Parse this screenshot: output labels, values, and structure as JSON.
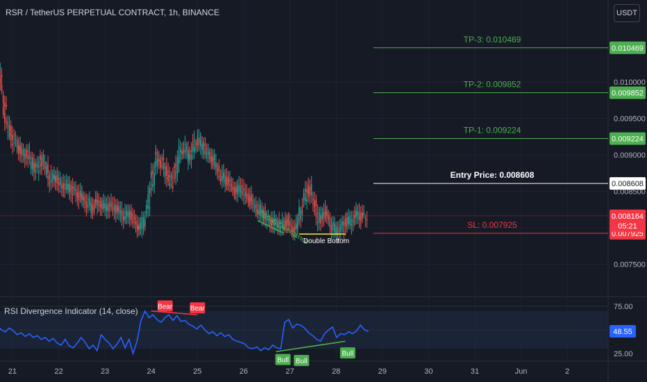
{
  "header": {
    "title": "RSR / TetherUS PERPETUAL CONTRACT, 1h, BINANCE",
    "currency_button": "USDT"
  },
  "indicator": {
    "title": "RSI Divergence Indicator (14, close)",
    "value_label": "48.55"
  },
  "colors": {
    "background": "#161a25",
    "up": "#26a69a",
    "down": "#ef5350",
    "tp_line": "#4caf50",
    "sl_line": "#f23645",
    "rsi_line": "#2962ff",
    "rsi_band": "#1e2a3d",
    "bull": "#4caf50",
    "bear": "#f23645",
    "divergence_text": "#4caf50",
    "double_bottom": "#ffeb3b"
  },
  "chart_data": {
    "type": "candlestick",
    "x_ticks": [
      "21",
      "22",
      "23",
      "24",
      "25",
      "26",
      "27",
      "28",
      "29",
      "30",
      "31",
      "Jun",
      "2"
    ],
    "y_ticks": [
      "0.010000",
      "0.009500",
      "0.009000",
      "0.008500",
      "0.008000",
      "0.007500"
    ],
    "ylim": [
      0.0073,
      0.0107
    ],
    "levels": [
      {
        "name": "TP-3",
        "label": "TP-3: 0.010469",
        "value": 0.010469,
        "axis_label": "0.010469",
        "style": "tp"
      },
      {
        "name": "TP-2",
        "label": "TP-2: 0.009852",
        "value": 0.009852,
        "axis_label": "0.009852",
        "style": "tp"
      },
      {
        "name": "TP-1",
        "label": "TP-1: 0.009224",
        "value": 0.009224,
        "axis_label": "0.009224",
        "style": "tp"
      },
      {
        "name": "Entry",
        "label": "Entry Price: 0.008608",
        "value": 0.008608,
        "axis_label": "0.008608",
        "style": "entry"
      },
      {
        "name": "SL",
        "label": "SL: 0.007925",
        "value": 0.007925,
        "axis_label": "0.007925",
        "style": "sl"
      }
    ],
    "current_price": {
      "value": 0.008164,
      "label": "0.008164",
      "countdown": "05:21"
    },
    "annotations": {
      "bullish_divergence": "Bullish Divergence",
      "double_bottom": "Double Bottom"
    },
    "series_close": [
      [
        20.5,
        0.0097
      ],
      [
        20.6,
        0.0104
      ],
      [
        20.7,
        0.0101
      ],
      [
        20.8,
        0.0096
      ],
      [
        20.9,
        0.0093
      ],
      [
        21.0,
        0.0092
      ],
      [
        21.1,
        0.0091
      ],
      [
        21.2,
        0.009
      ],
      [
        21.3,
        0.00905
      ],
      [
        21.4,
        0.00885
      ],
      [
        21.5,
        0.0088
      ],
      [
        21.6,
        0.00895
      ],
      [
        21.7,
        0.0088
      ],
      [
        21.8,
        0.00865
      ],
      [
        21.9,
        0.0087
      ],
      [
        22.0,
        0.0086
      ],
      [
        22.1,
        0.00858
      ],
      [
        22.2,
        0.00855
      ],
      [
        22.3,
        0.0085
      ],
      [
        22.4,
        0.00845
      ],
      [
        22.5,
        0.0084
      ],
      [
        22.6,
        0.00835
      ],
      [
        22.7,
        0.00825
      ],
      [
        22.8,
        0.00838
      ],
      [
        22.9,
        0.00832
      ],
      [
        23.0,
        0.00828
      ],
      [
        23.1,
        0.0083
      ],
      [
        23.2,
        0.00826
      ],
      [
        23.3,
        0.00822
      ],
      [
        23.4,
        0.00815
      ],
      [
        23.5,
        0.0082
      ],
      [
        23.6,
        0.0081
      ],
      [
        23.7,
        0.008
      ],
      [
        23.8,
        0.00805
      ],
      [
        23.9,
        0.0083
      ],
      [
        24.0,
        0.0087
      ],
      [
        24.1,
        0.009
      ],
      [
        24.2,
        0.0089
      ],
      [
        24.3,
        0.00875
      ],
      [
        24.4,
        0.0086
      ],
      [
        24.5,
        0.0088
      ],
      [
        24.6,
        0.00905
      ],
      [
        24.7,
        0.0091
      ],
      [
        24.8,
        0.00895
      ],
      [
        24.9,
        0.00915
      ],
      [
        25.0,
        0.0092
      ],
      [
        25.1,
        0.0091
      ],
      [
        25.2,
        0.009
      ],
      [
        25.3,
        0.00895
      ],
      [
        25.4,
        0.0088
      ],
      [
        25.5,
        0.0087
      ],
      [
        25.6,
        0.00865
      ],
      [
        25.7,
        0.00858
      ],
      [
        25.8,
        0.0085
      ],
      [
        25.9,
        0.00855
      ],
      [
        26.0,
        0.00845
      ],
      [
        26.1,
        0.0084
      ],
      [
        26.2,
        0.0083
      ],
      [
        26.3,
        0.00825
      ],
      [
        26.4,
        0.00818
      ],
      [
        26.5,
        0.0081
      ],
      [
        26.6,
        0.00808
      ],
      [
        26.7,
        0.00806
      ],
      [
        26.8,
        0.00803
      ],
      [
        26.9,
        0.0081
      ],
      [
        27.0,
        0.008
      ],
      [
        27.1,
        0.00798
      ],
      [
        27.2,
        0.0082
      ],
      [
        27.3,
        0.00845
      ],
      [
        27.4,
        0.00855
      ],
      [
        27.5,
        0.0083
      ],
      [
        27.6,
        0.0081
      ],
      [
        27.7,
        0.0082
      ],
      [
        27.8,
        0.00815
      ],
      [
        27.9,
        0.008
      ],
      [
        28.0,
        0.00795
      ],
      [
        28.1,
        0.008
      ],
      [
        28.2,
        0.0081
      ],
      [
        28.3,
        0.00808
      ],
      [
        28.4,
        0.0082
      ],
      [
        28.5,
        0.00815
      ],
      [
        28.6,
        0.00816
      ]
    ],
    "rsi": {
      "ylim": [
        20,
        80
      ],
      "y_ticks": [
        "75.00",
        "25.00"
      ],
      "band": [
        30,
        70
      ],
      "last": 48.55,
      "values": [
        70,
        60,
        55,
        50,
        48,
        52,
        49,
        45,
        47,
        43,
        46,
        42,
        44,
        40,
        42,
        38,
        41,
        36,
        34,
        40,
        33,
        31,
        36,
        42,
        37,
        30,
        34,
        28,
        45,
        40,
        36,
        30,
        35,
        42,
        31,
        40,
        25,
        38,
        60,
        70,
        63,
        66,
        61,
        58,
        63,
        66,
        60,
        65,
        59,
        60,
        56,
        54,
        51,
        55,
        50,
        46,
        48,
        44,
        47,
        43,
        45,
        40,
        38,
        37,
        35,
        31,
        30,
        32,
        28,
        31,
        29,
        34,
        31,
        30,
        58,
        61,
        52,
        56,
        55,
        52,
        47,
        44,
        40,
        38,
        46,
        50,
        53,
        42,
        46,
        45,
        48,
        46,
        49,
        55,
        50,
        48.55
      ],
      "x_range": [
        20.5,
        28.7
      ]
    },
    "signals": [
      {
        "type": "Bear",
        "label": "Bear",
        "x": 24.3,
        "y": 68
      },
      {
        "type": "Bear",
        "label": "Bear",
        "x": 25.0,
        "y": 66
      },
      {
        "type": "Bull",
        "label": "Bull",
        "x": 26.85,
        "y": 26
      },
      {
        "type": "Bull",
        "label": "Bull",
        "x": 27.25,
        "y": 25
      },
      {
        "type": "Bull",
        "label": "Bull",
        "x": 28.25,
        "y": 33
      }
    ]
  }
}
